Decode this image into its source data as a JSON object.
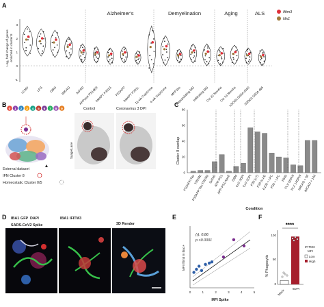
{
  "panel_a": {
    "letter": "A",
    "ylabel_line1": "Log₂ fold change of genes",
    "ylabel_line2": "enriched in cluster 8",
    "y_ticks": [
      "3",
      "2",
      "1",
      "0",
      "-1"
    ],
    "headers": [
      "Alzheimer's",
      "Demyelination",
      "Aging",
      "ALS"
    ],
    "legend": [
      {
        "label": "Ifitm3",
        "color": "#e0303a"
      },
      {
        "label": "Mx1",
        "color": "#a07a3a"
      }
    ],
    "conditions": [
      "LCMV",
      "LPS",
      "GBM",
      "tMCAO",
      "5xFAD",
      "APPswe PS1dE9",
      "hMAPT P301S",
      "PS2APP",
      "hMAPT P301L",
      "12-wk Cuprizone",
      "4-wk Cuprizone",
      "MPP2ko",
      "Repopulating MG",
      "Infiltrating MG",
      "Ctx 22 Months",
      "Ctx 13 Months",
      "hSOD1 G93A d100",
      "hSOD1 G93A d65"
    ]
  },
  "panel_b": {
    "letter": "B",
    "cluster_ids": [
      "0",
      "1",
      "2",
      "3",
      "4",
      "5",
      "6",
      "7",
      "8",
      "9"
    ],
    "cluster_colors": [
      "#e74c3c",
      "#8e44ad",
      "#2e86c1",
      "#f39c12",
      "#16a085",
      "#c0392b",
      "#7d3c98",
      "#27ae60",
      "#9b59b6",
      "#e67e22"
    ],
    "external_label": "External dataset",
    "ifn_label": "IFN Cluster 8",
    "homeostatic_label": "Homeostatic Cluster 0/5",
    "control_label": "Control",
    "corona_label": "Coronavirus 3 DPI",
    "syage_label": "Syage/Lane"
  },
  "panel_c": {
    "letter": "C",
    "ylabel": "Cluster 8 overlap",
    "xlabel": "Condition",
    "y_ticks": [
      "80",
      "60",
      "40",
      "20",
      "0"
    ]
  },
  "panel_d": {
    "letter": "D",
    "legend_iba1": "IBA1",
    "legend_green": "GFP",
    "legend_dapi": "DAPI",
    "legend_ifitm3": "IFITM3",
    "label_spike": "SARS-CoV2 Spike",
    "label_iba1": "IBA1",
    "label_ifitm3": "IFITM3",
    "label_render": "3D Render"
  },
  "panel_e": {
    "letter": "E",
    "ylabel": "MFI Ifitm3 in Iba1+",
    "xlabel": "MFI Spike",
    "stat_r": "(r). 0.86",
    "stat_p": "p <0.0001",
    "x_ticks": [
      "0",
      "1",
      "2",
      "3",
      "4",
      "5"
    ]
  },
  "panel_f": {
    "letter": "F",
    "ylabel": "% Phagocytic",
    "significance": "****",
    "legend_title_1": "IFITM3",
    "legend_title_2": "MFI",
    "legend_low": "Low",
    "legend_high": "High",
    "x_labels": [
      "Mock",
      "6DPI"
    ],
    "y_ticks": [
      "100",
      "50",
      "0"
    ]
  },
  "chart_data": [
    {
      "type": "bar",
      "panel": "C",
      "ylabel": "Cluster 8 overlap",
      "xlabel": "Condition",
      "ylim": [
        0,
        80
      ],
      "categories": [
        "PS2APP;Tau",
        "TREM2",
        "PS2APP;Tau TREM2",
        "5xFAD",
        "APP-PS1",
        "APP-PS1;ApoE",
        "GBM",
        "CoV 3DPI",
        "CoV 2DPI",
        "P30 (v.7)",
        "P30 (v.14)",
        "P100 + LPC",
        "P30 + LPC",
        "P540",
        "PLX 5DPW",
        "PLX 14DPW",
        "tMCAO + 5d",
        "tMCAO + 14d"
      ],
      "values": [
        2,
        3,
        3,
        14,
        23,
        2,
        8,
        12,
        57,
        52,
        50,
        25,
        20,
        19,
        10,
        9,
        41,
        41
      ]
    },
    {
      "type": "scatter",
      "panel": "E",
      "xlabel": "MFI Spike",
      "ylabel": "MFI Ifitm3 in Iba1+",
      "xlim": [
        0,
        5
      ],
      "series": [
        {
          "name": "Mock",
          "color": "#2e5fa8",
          "x": [
            0.3,
            0.5,
            0.7,
            0.9,
            1.2,
            1.5,
            1.7
          ],
          "y": [
            0.25,
            0.3,
            0.35,
            0.28,
            0.38,
            0.4,
            0.42
          ]
        },
        {
          "name": "6DPI",
          "color": "#7b2d8e",
          "x": [
            2.6,
            3.4,
            4.2
          ],
          "y": [
            0.5,
            0.78,
            0.68
          ]
        }
      ]
    },
    {
      "type": "bar",
      "panel": "F",
      "ylabel": "% Phagocytic",
      "ylim": [
        0,
        100
      ],
      "categories": [
        "Mock",
        "6DPI"
      ],
      "series": [
        {
          "name": "Low",
          "values": [
            8,
            null
          ]
        },
        {
          "name": "High",
          "values": [
            null,
            97
          ]
        }
      ]
    }
  ]
}
